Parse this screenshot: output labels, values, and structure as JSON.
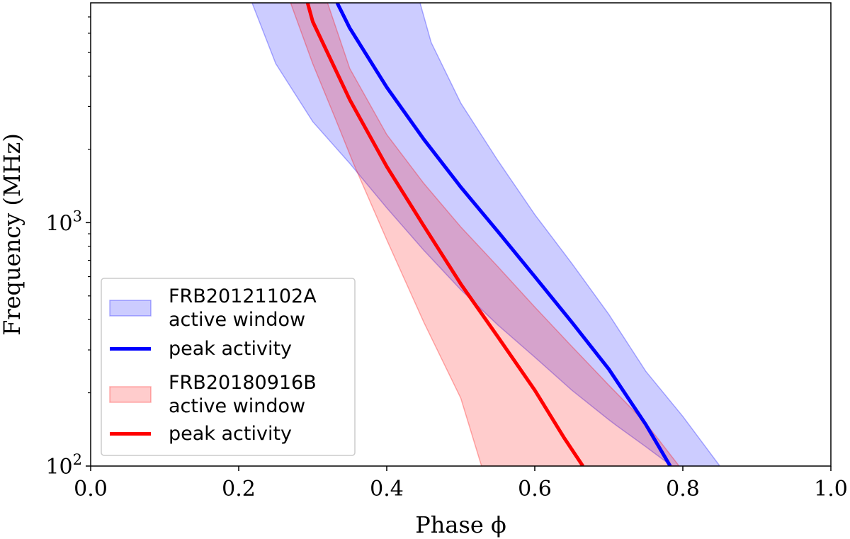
{
  "chart_data": {
    "type": "area",
    "title": "",
    "xlabel": "Phase ϕ",
    "ylabel": "Frequency (MHz)",
    "xlim": [
      0.0,
      1.0
    ],
    "ylim": [
      100,
      8000
    ],
    "yscale": "log",
    "xticks": [
      0.0,
      0.2,
      0.4,
      0.6,
      0.8,
      1.0
    ],
    "xtick_labels": [
      "0.0",
      "0.2",
      "0.4",
      "0.6",
      "0.8",
      "1.0"
    ],
    "yticks": [
      {
        "value": 100,
        "base": "10",
        "exp": "2"
      },
      {
        "value": 1000,
        "base": "10",
        "exp": "3"
      }
    ],
    "grid": false,
    "legend_position": "bottom-left",
    "bands": [
      {
        "name": "FRB20121102A active window",
        "legend_lines": [
          "FRB20121102A",
          "active window"
        ],
        "color": "#0000ff",
        "opacity": 0.2,
        "lower": [
          [
            0.218,
            8000
          ],
          [
            0.25,
            4500
          ],
          [
            0.3,
            2600
          ],
          [
            0.35,
            1750
          ],
          [
            0.4,
            1150
          ],
          [
            0.45,
            770
          ],
          [
            0.5,
            530
          ],
          [
            0.55,
            380
          ],
          [
            0.6,
            280
          ],
          [
            0.65,
            205
          ],
          [
            0.7,
            155
          ],
          [
            0.71,
            147
          ],
          [
            0.75,
            120
          ],
          [
            0.785,
            100
          ]
        ],
        "upper": [
          [
            0.445,
            8000
          ],
          [
            0.46,
            5500
          ],
          [
            0.5,
            3100
          ],
          [
            0.55,
            1800
          ],
          [
            0.6,
            1080
          ],
          [
            0.65,
            680
          ],
          [
            0.7,
            420
          ],
          [
            0.75,
            245
          ],
          [
            0.8,
            160
          ],
          [
            0.85,
            100
          ]
        ]
      },
      {
        "name": "FRB20180916B active window",
        "legend_lines": [
          "FRB20180916B",
          "active window"
        ],
        "color": "#ff0000",
        "opacity": 0.2,
        "lower": [
          [
            0.27,
            8000
          ],
          [
            0.3,
            4500
          ],
          [
            0.33,
            2700
          ],
          [
            0.355,
            1750
          ],
          [
            0.4,
            850
          ],
          [
            0.45,
            390
          ],
          [
            0.5,
            190
          ],
          [
            0.528,
            100
          ]
        ],
        "upper": [
          [
            0.32,
            8000
          ],
          [
            0.35,
            4300
          ],
          [
            0.4,
            2300
          ],
          [
            0.45,
            1450
          ],
          [
            0.5,
            960
          ],
          [
            0.55,
            660
          ],
          [
            0.6,
            450
          ],
          [
            0.65,
            310
          ],
          [
            0.7,
            215
          ],
          [
            0.75,
            150
          ],
          [
            0.795,
            100
          ]
        ]
      }
    ],
    "series": [
      {
        "name": "peak activity",
        "group": "FRB20121102A",
        "color": "#0000ff",
        "points": [
          [
            0.333,
            8000
          ],
          [
            0.35,
            6300
          ],
          [
            0.4,
            3600
          ],
          [
            0.45,
            2200
          ],
          [
            0.5,
            1400
          ],
          [
            0.55,
            920
          ],
          [
            0.6,
            600
          ],
          [
            0.65,
            390
          ],
          [
            0.7,
            250
          ],
          [
            0.75,
            148
          ],
          [
            0.783,
            100
          ]
        ]
      },
      {
        "name": "peak activity",
        "group": "FRB20180916B",
        "color": "#ff0000",
        "points": [
          [
            0.293,
            8000
          ],
          [
            0.3,
            6700
          ],
          [
            0.35,
            3200
          ],
          [
            0.4,
            1700
          ],
          [
            0.45,
            970
          ],
          [
            0.5,
            560
          ],
          [
            0.55,
            340
          ],
          [
            0.6,
            205
          ],
          [
            0.64,
            130
          ],
          [
            0.665,
            100
          ]
        ]
      }
    ],
    "legend": [
      {
        "kind": "patch",
        "ref": "band0",
        "lines": [
          "FRB20121102A",
          "active window"
        ]
      },
      {
        "kind": "line",
        "ref": "series0",
        "lines": [
          "peak activity"
        ]
      },
      {
        "kind": "patch",
        "ref": "band1",
        "lines": [
          "FRB20180916B",
          "active window"
        ]
      },
      {
        "kind": "line",
        "ref": "series1",
        "lines": [
          "peak activity"
        ]
      }
    ]
  }
}
